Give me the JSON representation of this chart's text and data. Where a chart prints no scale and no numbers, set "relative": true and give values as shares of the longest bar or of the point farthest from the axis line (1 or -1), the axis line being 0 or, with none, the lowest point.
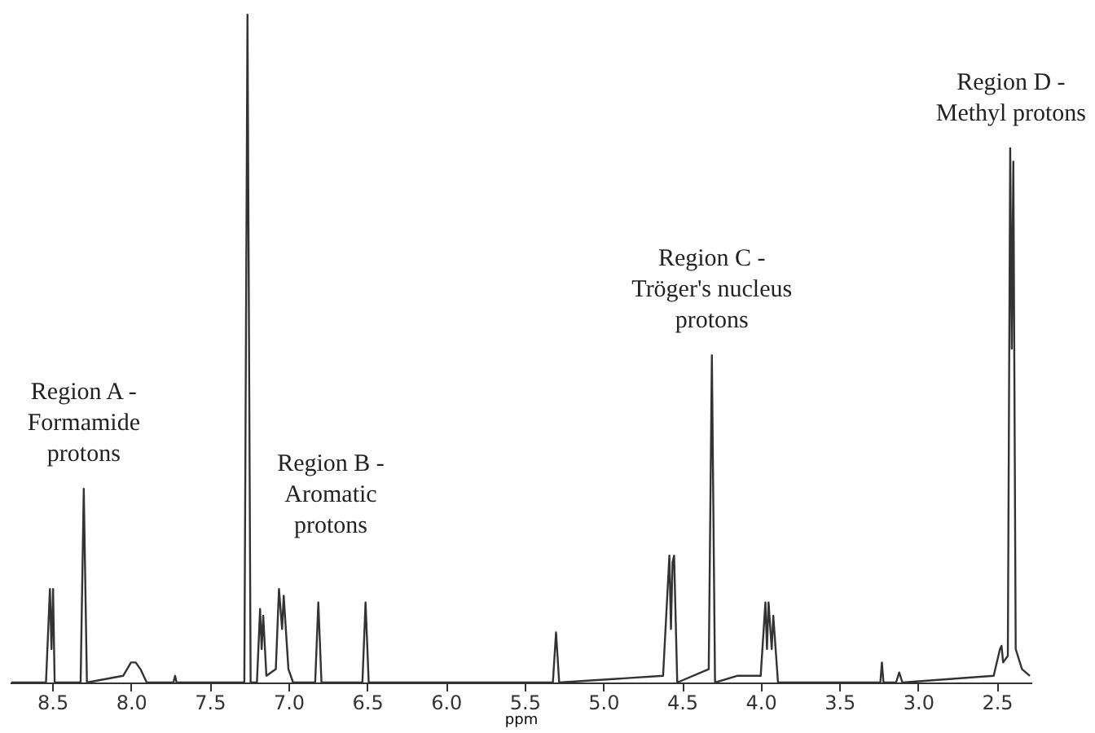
{
  "chart_data": {
    "type": "line",
    "relative": true,
    "xlabel": "ppm",
    "grid": false,
    "marker": "none",
    "line_style": "solid",
    "xlim": [
      8.77,
      2.28
    ],
    "xticks": [
      8.5,
      {
        "value": 8,
        "label": "8.0"
      },
      7.5,
      {
        "value": 7,
        "label": "7.0"
      },
      6.5,
      {
        "value": 6,
        "label": "6.0"
      },
      5.5,
      {
        "value": 5,
        "label": "5.0"
      },
      4.5,
      {
        "value": 4,
        "label": "4.0"
      },
      3.5,
      {
        "value": 3,
        "label": "3.0"
      },
      2.5
    ],
    "series": [
      {
        "color": "#333333",
        "x": [
          8.76,
          8.54,
          8.515,
          8.505,
          8.495,
          8.485,
          8.47,
          8.32,
          8.3,
          8.28,
          8.05,
          8.0,
          7.97,
          7.94,
          7.9,
          7.73,
          7.72,
          7.71,
          7.28,
          7.26,
          7.24,
          7.2,
          7.18,
          7.17,
          7.16,
          7.14,
          7.08,
          7.06,
          7.04,
          7.03,
          7.0,
          6.97,
          6.83,
          6.81,
          6.79,
          6.53,
          6.51,
          6.49,
          5.32,
          5.3,
          5.28,
          4.62,
          4.58,
          4.57,
          4.56,
          4.55,
          4.53,
          4.33,
          4.31,
          4.29,
          4.15,
          4.0,
          3.97,
          3.96,
          3.95,
          3.93,
          3.92,
          3.89,
          3.24,
          3.23,
          3.22,
          3.14,
          3.12,
          3.1,
          2.52,
          2.48,
          2.47,
          2.46,
          2.43,
          2.415,
          2.405,
          2.395,
          2.38,
          2.34,
          2.29
        ],
        "values": [
          0,
          0,
          0.14,
          0.05,
          0.14,
          0,
          0,
          0,
          0.29,
          0,
          0.01,
          0.03,
          0.03,
          0.02,
          0,
          0,
          0.01,
          0,
          0,
          1,
          0,
          0,
          0.11,
          0.05,
          0.1,
          0.01,
          0.02,
          0.14,
          0.08,
          0.13,
          0.02,
          0,
          0,
          0.12,
          0,
          0,
          0.12,
          0,
          0,
          0.075,
          0,
          0.01,
          0.19,
          0.08,
          0.18,
          0.19,
          0,
          0.02,
          0.49,
          0,
          0.01,
          0.01,
          0.12,
          0.05,
          0.12,
          0.05,
          0.1,
          0,
          0,
          0.03,
          0,
          0,
          0.015,
          0,
          0.01,
          0.05,
          0.055,
          0.03,
          0.04,
          0.8,
          0.5,
          0.78,
          0.05,
          0.02,
          0.01
        ]
      }
    ],
    "annotations": [
      {
        "text": "Region A -\nFormamide\nprotons",
        "x": 8.3,
        "y": 0.3
      },
      "Region B -\nAromatic\nprotons",
      {
        "text": "Region C -\nTröger's nucleus\nprotons",
        "x": 4.31,
        "y": 0.5
      },
      {
        "text": "Region D -\nMethyl protons",
        "x": 2.41,
        "y": 0.81
      }
    ]
  }
}
